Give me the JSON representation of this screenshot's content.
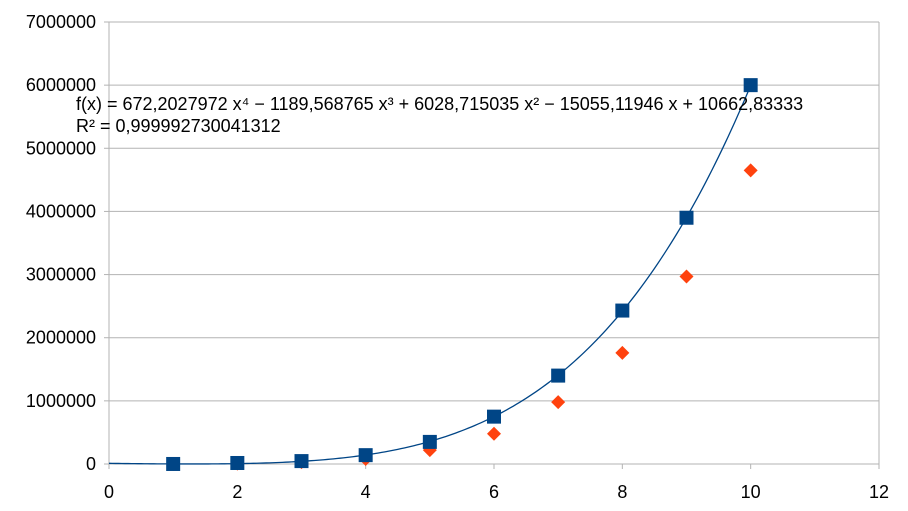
{
  "chart_data": {
    "type": "scatter",
    "xlim": [
      0,
      12
    ],
    "ylim": [
      0,
      7000000
    ],
    "x_ticks": [
      "0",
      "2",
      "4",
      "6",
      "8",
      "10",
      "12"
    ],
    "y_ticks": [
      "0",
      "1000000",
      "2000000",
      "3000000",
      "4000000",
      "5000000",
      "6000000",
      "7000000"
    ],
    "grid": "horizontal",
    "series": [
      {
        "marker": "square",
        "color": "#004586",
        "x": [
          1,
          2,
          3,
          4,
          5,
          6,
          7,
          8,
          9,
          10
        ],
        "y": [
          500,
          16000,
          46000,
          140000,
          350000,
          750000,
          1400000,
          2430000,
          3900000,
          6000000
        ]
      },
      {
        "marker": "diamond",
        "color": "#ff420e",
        "x": [
          1,
          2,
          3,
          4,
          5,
          6,
          7,
          8,
          9,
          10
        ],
        "y": [
          300,
          6000,
          30000,
          80000,
          220000,
          480000,
          980000,
          1760000,
          2970000,
          4650000
        ]
      }
    ],
    "trendline": {
      "type": "polynomial",
      "order": 4,
      "color": "#004586",
      "coefficients": [
        672.2027972,
        -1189.568765,
        6028.715035,
        -15055.11946,
        10662.83333
      ],
      "equation": "f(x) = 672,2027972 x⁴ − 1189,568765 x³ + 6028,715035 x² − 15055,11946 x + 10662,83333",
      "r_squared": "R² = 0,999992730041312"
    }
  }
}
